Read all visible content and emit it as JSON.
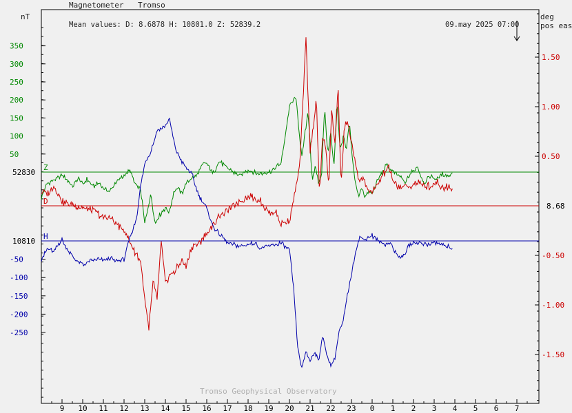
{
  "header": {
    "instrument": "Magnetometer",
    "station": "Tromso",
    "mean_values": "Mean values:  D: 8.6878   H: 10801.0   Z: 52839.2",
    "timestamp": "09.may 2025 07:00",
    "left_unit": "nT",
    "right_unit_1": "deg",
    "right_unit_2": "pos east",
    "watermark": "Tromso Geophysical Observatory"
  },
  "colors": {
    "z": "#008800",
    "h": "#0000aa",
    "d": "#cc0000",
    "axis": "#000000"
  },
  "chart_data": {
    "type": "line",
    "x_ticks": [
      "9",
      "10",
      "11",
      "12",
      "13",
      "14",
      "15",
      "16",
      "17",
      "18",
      "19",
      "20",
      "21",
      "22",
      "23",
      "0",
      "1",
      "2",
      "3",
      "4",
      "5",
      "6",
      "7"
    ],
    "x_range_hours_since_08": [
      0,
      24
    ],
    "baselines": {
      "Z": {
        "label": "Z",
        "value_label": "52830"
      },
      "H": {
        "label": "H",
        "value_label": "10810"
      },
      "D": {
        "label": "D",
        "value_label": "8.68"
      }
    },
    "left_ticks_z": [
      "350",
      "300",
      "250",
      "200",
      "150",
      "100",
      "50"
    ],
    "left_ticks_h": [
      "-50",
      "-100",
      "-150",
      "-200",
      "-250"
    ],
    "right_ticks_d": [
      "1.50",
      "1.00",
      "0.50",
      "-0.50",
      "-1.00",
      "-1.50"
    ],
    "series": [
      {
        "name": "Z",
        "color": "#008800",
        "x": [
          0.0,
          0.3,
          0.7,
          1.0,
          1.3,
          1.5,
          1.8,
          2.0,
          2.2,
          2.5,
          2.8,
          3.0,
          3.3,
          3.5,
          3.8,
          4.0,
          4.3,
          4.5,
          4.8,
          5.0,
          5.3,
          5.5,
          5.7,
          6.0,
          6.2,
          6.4,
          6.6,
          6.8,
          7.0,
          7.2,
          7.5,
          7.8,
          8.0,
          8.3,
          8.6,
          9.0,
          9.3,
          9.6,
          10.0,
          10.3,
          10.6,
          10.9,
          11.0,
          11.3,
          11.6,
          12.0,
          12.3,
          12.6,
          12.9,
          13.0,
          13.1,
          13.25,
          13.4,
          13.55,
          13.7,
          13.85,
          14.0,
          14.15,
          14.3,
          14.45,
          14.6,
          14.75,
          14.9,
          15.05,
          15.2,
          15.35,
          15.5,
          15.65,
          15.8,
          16.0,
          16.2,
          16.4,
          16.7,
          17.0,
          17.3,
          17.6,
          17.9,
          18.2,
          18.5,
          18.8,
          19.1,
          19.4,
          19.7,
          19.9
        ],
        "y": [
          -70,
          -30,
          -20,
          -10,
          -25,
          -40,
          -15,
          -35,
          -20,
          -40,
          -30,
          -45,
          -55,
          -35,
          -20,
          -10,
          5,
          -30,
          -50,
          -140,
          -60,
          -145,
          -120,
          -100,
          -110,
          -55,
          -45,
          -60,
          -30,
          -20,
          -10,
          20,
          25,
          -5,
          30,
          10,
          0,
          -10,
          5,
          0,
          -5,
          0,
          0,
          10,
          25,
          180,
          210,
          40,
          170,
          80,
          -30,
          20,
          -30,
          -10,
          180,
          50,
          110,
          10,
          200,
          60,
          100,
          60,
          140,
          30,
          -30,
          -70,
          -40,
          -70,
          -55,
          -60,
          -30,
          -10,
          20,
          0,
          -10,
          -30,
          0,
          15,
          -30,
          -10,
          -20,
          -5,
          -10,
          0
        ],
        "baseline": 0
      },
      {
        "name": "D",
        "color": "#cc0000",
        "x": [
          0.0,
          0.3,
          0.6,
          1.0,
          1.3,
          1.6,
          2.0,
          2.3,
          2.6,
          3.0,
          3.3,
          3.6,
          4.0,
          4.3,
          4.5,
          4.8,
          5.0,
          5.2,
          5.4,
          5.6,
          5.8,
          6.0,
          6.2,
          6.5,
          6.8,
          7.0,
          7.3,
          7.6,
          8.0,
          8.3,
          8.6,
          9.0,
          9.3,
          9.6,
          10.0,
          10.3,
          10.6,
          11.0,
          11.3,
          11.6,
          12.0,
          12.5,
          12.8,
          13.0,
          13.15,
          13.3,
          13.45,
          13.6,
          13.75,
          13.9,
          14.05,
          14.2,
          14.35,
          14.5,
          14.65,
          14.8,
          15.0,
          15.2,
          15.4,
          15.6,
          15.8,
          16.0,
          16.2,
          16.5,
          16.8,
          17.0,
          17.3,
          17.6,
          17.9,
          18.2,
          18.5,
          18.8,
          19.1,
          19.4,
          19.7,
          19.9
        ],
        "y": [
          0.15,
          0.12,
          0.2,
          0.05,
          0.02,
          0.0,
          -0.02,
          -0.05,
          -0.05,
          -0.12,
          -0.12,
          -0.18,
          -0.25,
          -0.38,
          -0.45,
          -0.55,
          -0.95,
          -1.25,
          -0.75,
          -0.95,
          -0.35,
          -0.8,
          -0.7,
          -0.65,
          -0.55,
          -0.62,
          -0.4,
          -0.38,
          -0.28,
          -0.2,
          -0.1,
          -0.05,
          0.0,
          0.05,
          0.1,
          0.08,
          0.05,
          -0.08,
          -0.05,
          -0.18,
          -0.15,
          0.4,
          1.7,
          0.55,
          0.8,
          1.1,
          0.1,
          0.7,
          0.6,
          0.2,
          1.0,
          0.6,
          1.2,
          0.2,
          0.8,
          0.85,
          0.65,
          0.4,
          0.25,
          0.28,
          0.15,
          0.15,
          0.18,
          0.3,
          0.4,
          0.25,
          0.18,
          0.2,
          0.2,
          0.24,
          0.2,
          0.2,
          0.25,
          0.18,
          0.2,
          0.16
        ],
        "baseline": 0
      },
      {
        "name": "H",
        "color": "#0000aa",
        "x": [
          0.0,
          0.3,
          0.6,
          1.0,
          1.2,
          1.5,
          1.8,
          2.0,
          2.4,
          2.8,
          3.0,
          3.3,
          3.6,
          4.0,
          4.3,
          4.6,
          4.8,
          5.0,
          5.3,
          5.6,
          5.9,
          6.2,
          6.5,
          6.8,
          7.0,
          7.3,
          7.6,
          8.0,
          8.3,
          8.6,
          9.0,
          9.3,
          9.6,
          10.0,
          10.3,
          10.6,
          11.0,
          11.3,
          11.6,
          12.0,
          12.2,
          12.4,
          12.6,
          12.8,
          13.0,
          13.2,
          13.4,
          13.6,
          13.8,
          14.0,
          14.2,
          14.4,
          14.6,
          14.8,
          15.0,
          15.2,
          15.4,
          15.6,
          15.8,
          16.0,
          16.3,
          16.6,
          16.9,
          17.2,
          17.5,
          17.8,
          18.1,
          18.4,
          18.7,
          19.0,
          19.3,
          19.6,
          19.9
        ],
        "y": [
          -50,
          -20,
          -30,
          5,
          -20,
          -40,
          -60,
          -65,
          -55,
          -50,
          -55,
          -45,
          -55,
          -50,
          10,
          60,
          150,
          210,
          245,
          300,
          310,
          330,
          250,
          215,
          200,
          180,
          125,
          90,
          40,
          20,
          -5,
          -10,
          -15,
          -10,
          -5,
          -20,
          -15,
          -10,
          -5,
          -25,
          -130,
          -290,
          -350,
          -300,
          -330,
          -300,
          -330,
          -260,
          -310,
          -340,
          -320,
          -250,
          -220,
          -150,
          -90,
          -30,
          10,
          5,
          10,
          15,
          0,
          -10,
          -5,
          -40,
          -45,
          -10,
          -5,
          -5,
          -10,
          -5,
          -10,
          -15,
          -20
        ],
        "baseline": 0
      }
    ],
    "axes": {
      "z_nT_per_px": 1.913,
      "h_nT_per_px": 1.913,
      "d_deg_per_unit_scale": true,
      "z_range": [
        -250,
        430
      ],
      "h_range": [
        -350,
        350
      ],
      "d_range": [
        -1.75,
        1.75
      ]
    },
    "grid": false,
    "legend": "none"
  }
}
